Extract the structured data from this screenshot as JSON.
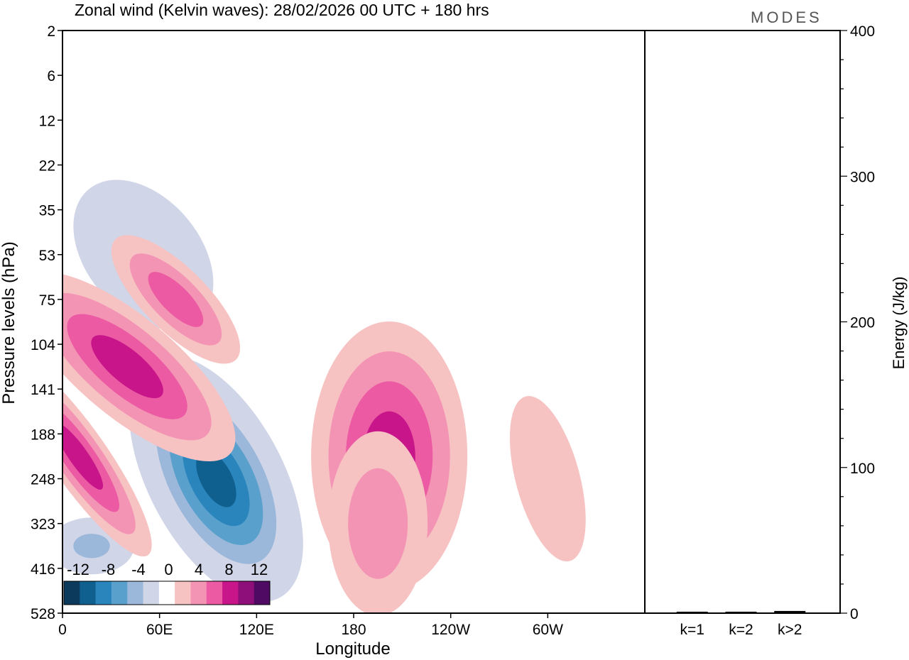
{
  "chart_data": {
    "type": "heatmap",
    "title": "Zonal wind (Kelvin waves):  28/02/2026  00 UTC  + 180 hrs",
    "logo": "MODES",
    "xlabel": "Longitude",
    "ylabel": "Pressure levels (hPa)",
    "x_ticks": [
      "0",
      "60E",
      "120E",
      "180",
      "120W",
      "60W"
    ],
    "y_ticks": [
      "2",
      "6",
      "12",
      "22",
      "35",
      "53",
      "75",
      "104",
      "141",
      "188",
      "248",
      "323",
      "416",
      "528"
    ],
    "colorbar": {
      "labels": [
        "-12",
        "-8",
        "-4",
        "0",
        "4",
        "8",
        "12"
      ],
      "levels": [
        -14,
        -12,
        -10,
        -8,
        -6,
        -4,
        -2,
        2,
        4,
        6,
        8,
        10,
        12,
        14
      ],
      "colors": [
        "#0b3a5c",
        "#10608f",
        "#2a85bd",
        "#5aa0cc",
        "#9bb7da",
        "#d0d5e8",
        "#ffffff",
        "#f7c2c2",
        "#f494b4",
        "#eb5aa3",
        "#c8168a",
        "#8e0f7a",
        "#4f0a63"
      ]
    },
    "features": [
      {
        "sign": "neg",
        "peak": -13,
        "lon": 95,
        "lev": 10.0
      },
      {
        "sign": "neg",
        "peak": -7,
        "lon": 18,
        "lev": 11.5
      },
      {
        "sign": "neg",
        "peak": -5,
        "lon": 50,
        "lev": 5.0
      },
      {
        "sign": "pos",
        "peak": 9,
        "lon": 40,
        "lev": 7.5
      },
      {
        "sign": "pos",
        "peak": 9,
        "lon": 10,
        "lev": 9.5
      },
      {
        "sign": "pos",
        "peak": 7,
        "lon": 70,
        "lev": 6.0
      },
      {
        "sign": "pos",
        "peak": 8,
        "lon": 202,
        "lev": 9.5
      },
      {
        "sign": "pos",
        "peak": 5,
        "lon": 195,
        "lev": 11.0
      },
      {
        "sign": "pos",
        "peak": 3,
        "lon": 300,
        "lev": 10.0
      }
    ],
    "energy_panel": {
      "ylabel": "Energy (J/kg)",
      "ylim": [
        0,
        400
      ],
      "y_ticks": [
        "0",
        "100",
        "200",
        "300",
        "400"
      ],
      "categories": [
        "k=1",
        "k=2",
        "k>2"
      ],
      "values": [
        1,
        1,
        1.5
      ]
    }
  }
}
